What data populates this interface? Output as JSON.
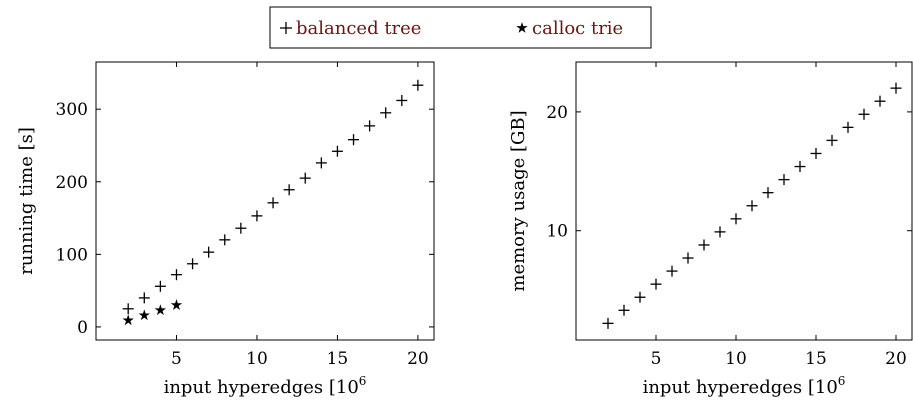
{
  "legend": {
    "entries": [
      {
        "label": "balanced tree",
        "marker": "plus"
      },
      {
        "label": "calloc trie",
        "marker": "star"
      }
    ]
  },
  "chart_data": [
    {
      "type": "scatter",
      "xlabel": "input hyperedges [10^6]",
      "ylabel": "running time [s]",
      "xlim": [
        0,
        21
      ],
      "ylim": [
        -18,
        365
      ],
      "xticks": [
        5,
        10,
        15,
        20
      ],
      "yticks": [
        0,
        100,
        200,
        300
      ],
      "grid": false,
      "series": [
        {
          "name": "balanced tree",
          "marker": "plus",
          "x": [
            2,
            3,
            4,
            5,
            6,
            7,
            8,
            9,
            10,
            11,
            12,
            13,
            14,
            15,
            16,
            17,
            18,
            19,
            20
          ],
          "y": [
            25,
            40,
            56,
            72,
            87,
            103,
            120,
            136,
            153,
            171,
            189,
            205,
            226,
            242,
            258,
            277,
            295,
            312,
            333
          ]
        },
        {
          "name": "calloc trie",
          "marker": "star",
          "x": [
            2,
            3,
            4,
            5
          ],
          "y": [
            9,
            16,
            23,
            30
          ]
        }
      ]
    },
    {
      "type": "scatter",
      "xlabel": "input hyperedges [10^6]",
      "ylabel": "memory usage [GB]",
      "xlim": [
        0,
        21
      ],
      "ylim": [
        0.8,
        24.2
      ],
      "xticks": [
        5,
        10,
        15,
        20
      ],
      "yticks": [
        10,
        20
      ],
      "grid": false,
      "series": [
        {
          "name": "balanced tree",
          "marker": "plus",
          "x": [
            2,
            3,
            4,
            5,
            6,
            7,
            8,
            9,
            10,
            11,
            12,
            13,
            14,
            15,
            16,
            17,
            18,
            19,
            20
          ],
          "y": [
            2.2,
            3.3,
            4.4,
            5.5,
            6.6,
            7.7,
            8.8,
            9.9,
            11.0,
            12.1,
            13.2,
            14.3,
            15.4,
            16.5,
            17.6,
            18.7,
            19.8,
            20.9,
            22.0
          ]
        }
      ]
    }
  ]
}
